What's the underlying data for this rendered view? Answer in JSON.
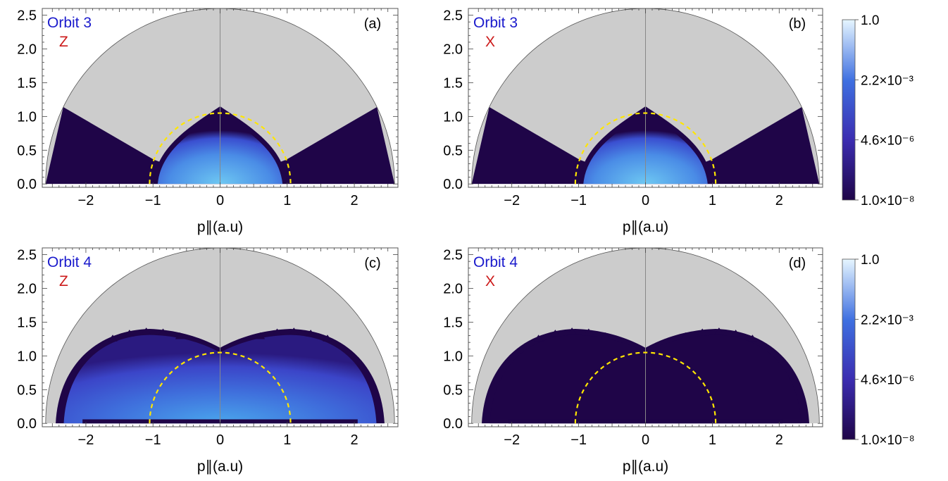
{
  "colors": {
    "dark": "#1f0548",
    "mid": "#3e4ed6",
    "bright": "#5fb7ee",
    "gray": "#cccccc",
    "yellow": "#ffe600",
    "orbit_text": "#1a1acc",
    "pol_text": "#cc1a1a"
  },
  "chart_data": [
    {
      "type": "heatmap",
      "panel_label": "(a)",
      "orbit_label": "Orbit 3",
      "polarization": "Z",
      "xlabel": "p∥(a.u)",
      "xlim": [
        -2.65,
        2.65
      ],
      "ylim": [
        -0.05,
        2.6
      ],
      "xticks": [
        -2,
        -1,
        0,
        1,
        2
      ],
      "yticks": [
        0.0,
        0.5,
        1.0,
        1.5,
        2.0,
        2.5
      ],
      "reference_circle_radius": 1.05,
      "outer_radius": 2.6,
      "scale": "log",
      "colorbar_range": [
        "1.0e-08",
        "1.0"
      ]
    },
    {
      "type": "heatmap",
      "panel_label": "(b)",
      "orbit_label": "Orbit 3",
      "polarization": "X",
      "xlabel": "p∥(a.u)",
      "xlim": [
        -2.65,
        2.65
      ],
      "ylim": [
        -0.05,
        2.6
      ],
      "xticks": [
        -2,
        -1,
        0,
        1,
        2
      ],
      "yticks": [
        0.0,
        0.5,
        1.0,
        1.5,
        2.0,
        2.5
      ],
      "reference_circle_radius": 1.05,
      "outer_radius": 2.6,
      "scale": "log",
      "colorbar_range": [
        "1.0e-08",
        "1.0"
      ]
    },
    {
      "type": "heatmap",
      "panel_label": "(c)",
      "orbit_label": "Orbit 4",
      "polarization": "Z",
      "xlabel": "p∥(a.u)",
      "xlim": [
        -2.65,
        2.65
      ],
      "ylim": [
        -0.05,
        2.6
      ],
      "xticks": [
        -2,
        -1,
        0,
        1,
        2
      ],
      "yticks": [
        0.0,
        0.5,
        1.0,
        1.5,
        2.0,
        2.5
      ],
      "reference_circle_radius": 1.05,
      "outer_radius": 2.6,
      "scale": "log",
      "colorbar_range": [
        "1.0e-08",
        "1.0"
      ]
    },
    {
      "type": "heatmap",
      "panel_label": "(d)",
      "orbit_label": "Orbit 4",
      "polarization": "X",
      "xlabel": "p∥(a.u)",
      "xlim": [
        -2.65,
        2.65
      ],
      "ylim": [
        -0.05,
        2.6
      ],
      "xticks": [
        -2,
        -1,
        0,
        1,
        2
      ],
      "yticks": [
        0.0,
        0.5,
        1.0,
        1.5,
        2.0,
        2.5
      ],
      "reference_circle_radius": 1.05,
      "outer_radius": 2.6,
      "scale": "log",
      "colorbar_range": [
        "1.0e-08",
        "1.0"
      ]
    }
  ],
  "colorbars": [
    {
      "labels": [
        "1.0",
        "2.2×10⁻³",
        "4.6×10⁻⁶",
        "1.0×10⁻⁸"
      ]
    },
    {
      "labels": [
        "1.0",
        "2.2×10⁻³",
        "4.6×10⁻⁶",
        "1.0×10⁻⁸"
      ]
    }
  ]
}
